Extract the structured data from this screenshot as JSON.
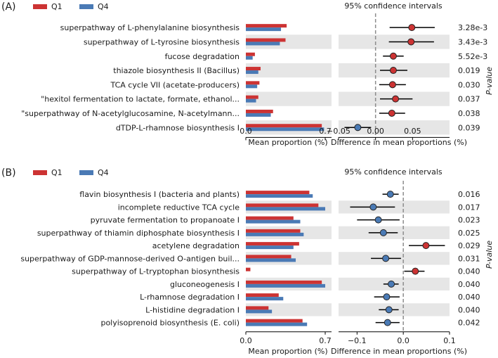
{
  "colors": {
    "q1": "#cc3333",
    "q4": "#4a7ab5",
    "pos_dot": "#cc3333",
    "neg_dot": "#4a7ab5",
    "stripe": "#e6e6e6",
    "zero_line": "#8c8c8c"
  },
  "chart_data": [
    {
      "type": "bar",
      "panel_label": "(A)",
      "legend": [
        "Q1",
        "Q4"
      ],
      "ci_title": "95% confidence intervals",
      "xlabel_left": "Mean proportion (%)",
      "xlabel_right": "Difference in mean proportions (%)",
      "pvalue_label": "P-value",
      "left_xlim": [
        0,
        0.7
      ],
      "left_ticks": [
        "0.0",
        "0.7"
      ],
      "right_xlim": [
        -0.05,
        0.1
      ],
      "right_ticks": [
        {
          "v": -0.05,
          "label": "−0.05"
        },
        {
          "v": 0,
          "label": "0.00"
        },
        {
          "v": 0.05,
          "label": "0.05"
        }
      ],
      "categories": [
        "superpathway of L-phenylalanine biosynthesis",
        "superpathway of L-tyrosine biosynthesis",
        "fucose degradation",
        "thiazole biosynthesis II (Bacillus)",
        "TCA cycle VII (acetate-producers)",
        "\"hexitol fermentation to lactate, formate, ethanol...",
        "\"superpathway of N-acetylglucosamine, N-acetylmann...",
        "dTDP-L-rhamnose biosynthesis I"
      ],
      "series": [
        {
          "name": "Q1",
          "values": [
            0.36,
            0.35,
            0.08,
            0.13,
            0.12,
            0.11,
            0.24,
            0.67
          ]
        },
        {
          "name": "Q4",
          "values": [
            0.31,
            0.3,
            0.06,
            0.11,
            0.1,
            0.09,
            0.22,
            0.69
          ]
        }
      ],
      "diff": [
        0.049,
        0.048,
        0.024,
        0.024,
        0.023,
        0.027,
        0.022,
        -0.024
      ],
      "ci_low": [
        0.019,
        0.018,
        0.01,
        0.006,
        0.005,
        0.006,
        0.005,
        -0.042
      ],
      "ci_high": [
        0.08,
        0.079,
        0.038,
        0.043,
        0.041,
        0.05,
        0.04,
        -0.006
      ],
      "p_values": [
        "3.28e-3",
        "3.43e-3",
        "5.52e-3",
        "0.019",
        "0.030",
        "0.037",
        "0.038",
        "0.039"
      ]
    },
    {
      "type": "bar",
      "panel_label": "(B)",
      "legend": [
        "Q1",
        "Q4"
      ],
      "ci_title": "95% confidence intervals",
      "xlabel_left": "Mean proportion (%)",
      "xlabel_right": "Difference in mean proportions (%)",
      "pvalue_label": "P-value",
      "left_xlim": [
        0,
        0.7
      ],
      "left_ticks": [
        "0.0",
        "0.7"
      ],
      "right_xlim": [
        -0.14,
        0.1
      ],
      "right_ticks": [
        {
          "v": -0.1,
          "label": "−0.1"
        },
        {
          "v": 0,
          "label": "0.0"
        },
        {
          "v": 0.1,
          "label": "0.1"
        }
      ],
      "categories": [
        "flavin biosynthesis I (bacteria and plants)",
        "incomplete reductive TCA cycle",
        "pyruvate fermentation to propanoate I",
        "superpathway of thiamin diphosphate biosynthesis I",
        "acetylene degradation",
        "superpathway of GDP-mannose-derived O-antigen buil...",
        "superpathway of L-tryptophan biosynthesis",
        "gluconeogenesis I",
        "L-rhamnose degradation I",
        "L-histidine degradation I",
        "polyisoprenoid biosynthesis (E. coli)"
      ],
      "series": [
        {
          "name": "Q1",
          "values": [
            0.56,
            0.64,
            0.42,
            0.48,
            0.47,
            0.4,
            0.04,
            0.67,
            0.29,
            0.2,
            0.5
          ]
        },
        {
          "name": "Q4",
          "values": [
            0.59,
            0.7,
            0.48,
            0.51,
            0.42,
            0.44,
            0.0,
            0.7,
            0.33,
            0.23,
            0.54
          ]
        }
      ],
      "diff": [
        -0.028,
        -0.065,
        -0.054,
        -0.043,
        0.049,
        -0.038,
        0.026,
        -0.026,
        -0.036,
        -0.031,
        -0.034
      ],
      "ci_low": [
        -0.045,
        -0.115,
        -0.1,
        -0.075,
        0.012,
        -0.07,
        0.002,
        -0.043,
        -0.063,
        -0.053,
        -0.06
      ],
      "ci_high": [
        -0.01,
        -0.018,
        -0.008,
        -0.012,
        0.09,
        -0.005,
        0.046,
        -0.01,
        -0.008,
        -0.01,
        -0.008
      ],
      "p_values": [
        "0.016",
        "0.017",
        "0.023",
        "0.025",
        "0.029",
        "0.031",
        "0.040",
        "0.040",
        "0.040",
        "0.040",
        "0.042"
      ]
    }
  ]
}
